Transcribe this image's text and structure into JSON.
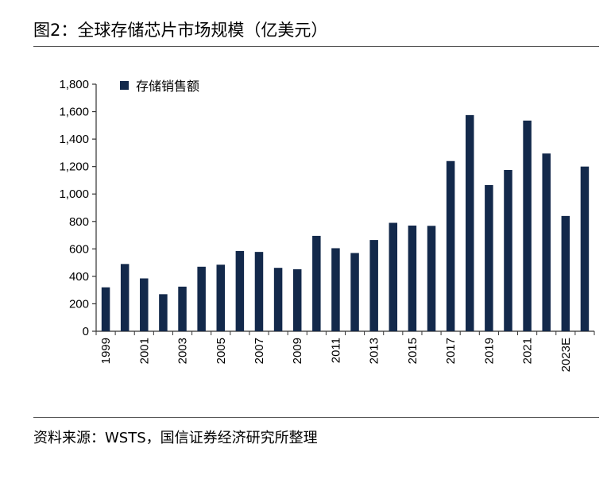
{
  "title": "图2：全球存储芯片市场规模（亿美元）",
  "source": "资料来源：WSTS，国信证券经济研究所整理",
  "colors": {
    "bar": "#13294b",
    "axis": "#333333"
  },
  "chart_data": {
    "type": "bar",
    "legend": "存储销售额",
    "legend_position": "top-left",
    "grid": false,
    "ylim": [
      0,
      1800
    ],
    "yticks": [
      {
        "value": 0,
        "label": "0"
      },
      {
        "value": 200,
        "label": "200"
      },
      {
        "value": 400,
        "label": "400"
      },
      {
        "value": 600,
        "label": "600"
      },
      {
        "value": 800,
        "label": "800"
      },
      {
        "value": 1000,
        "label": "1,000"
      },
      {
        "value": 1200,
        "label": "1,200"
      },
      {
        "value": 1400,
        "label": "1,400"
      },
      {
        "value": 1600,
        "label": "1,600"
      },
      {
        "value": 1800,
        "label": "1,800"
      }
    ],
    "categories": [
      "1999",
      "2000",
      "2001",
      "2002",
      "2003",
      "2004",
      "2005",
      "2006",
      "2007",
      "2008",
      "2009",
      "2010",
      "2011",
      "2012",
      "2013",
      "2014",
      "2015",
      "2016",
      "2017",
      "2018",
      "2019",
      "2020",
      "2021",
      "2022",
      "2023E",
      "2024E"
    ],
    "xtick_labels": [
      "1999",
      "2001",
      "2003",
      "2005",
      "2007",
      "2009",
      "2011",
      "2013",
      "2015",
      "2017",
      "2019",
      "2021",
      "2023E"
    ],
    "values": [
      320,
      490,
      385,
      270,
      325,
      470,
      485,
      585,
      578,
      462,
      452,
      695,
      605,
      570,
      665,
      790,
      770,
      768,
      1240,
      1575,
      1065,
      1175,
      1535,
      1295,
      840,
      1200
    ]
  }
}
